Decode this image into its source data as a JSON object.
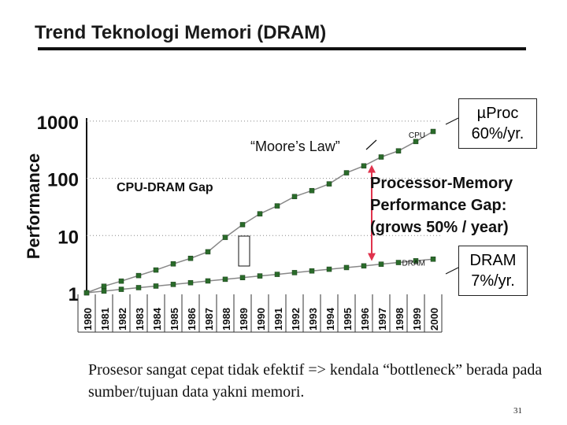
{
  "slide": {
    "title": "Trend Teknologi Memori (DRAM)",
    "caption": "Prosesor sangat cepat tidak efektif => kendala “bottleneck” berada pada sumber/tujuan data yakni memori.",
    "page_number": "31"
  },
  "chart_data": {
    "type": "line",
    "ylabel": "Performance",
    "y_scale": "log",
    "ylim": [
      1,
      1000
    ],
    "ytick_labels": [
      "1",
      "10",
      "100",
      "1000"
    ],
    "categories": [
      "1980",
      "1981",
      "1982",
      "1983",
      "1984",
      "1985",
      "1986",
      "1987",
      "1988",
      "1989",
      "1990",
      "1991",
      "1992",
      "1993",
      "1994",
      "1995",
      "1996",
      "1997",
      "1998",
      "1999",
      "2000"
    ],
    "grid": "dotted horizontal",
    "series": [
      {
        "name": "CPU",
        "color": "#2a6b2a",
        "values": [
          1,
          1.3,
          1.6,
          2.0,
          2.5,
          3.2,
          4.0,
          5.2,
          9.3,
          15.5,
          24,
          33,
          48,
          61,
          80,
          125,
          165,
          236,
          302,
          440,
          660
        ]
      },
      {
        "name": "DRAM",
        "color": "#2a6b2a",
        "values": [
          1,
          1.07,
          1.15,
          1.23,
          1.31,
          1.4,
          1.5,
          1.61,
          1.72,
          1.84,
          1.97,
          2.1,
          2.25,
          2.41,
          2.58,
          2.76,
          2.95,
          3.16,
          3.38,
          3.62,
          3.87
        ]
      }
    ],
    "annotations": {
      "moores_law": "“Moore’s Law”",
      "gap_label": "CPU-DRAM Gap",
      "proc_rate": "µProc 60%/yr.",
      "gap_title": "Processor-Memory Performance Gap: (grows 50% / year)",
      "dram_rate": "DRAM 7%/yr."
    },
    "colors": {
      "markers": "#2a6b2a",
      "gap_arrow": "#e0334d",
      "grid": "#888888"
    }
  }
}
